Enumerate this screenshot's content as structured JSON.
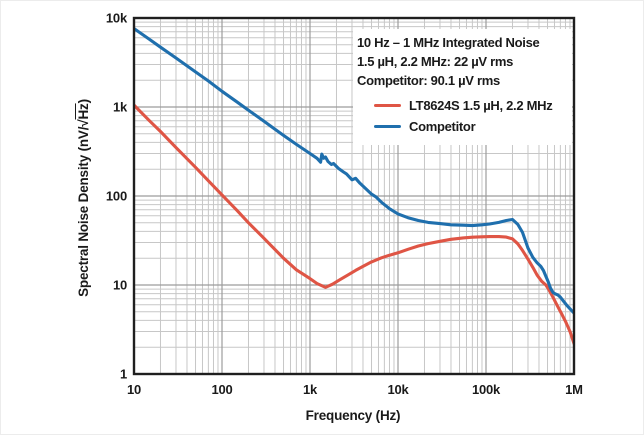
{
  "annotation": {
    "lines": [
      "10 Hz – 1 MHz Integrated Noise",
      "1.5 µH, 2.2 MHz: 22 µV rms",
      "Competitor: 90.1 µV rms"
    ]
  },
  "axes": {
    "x_title": "Frequency (Hz)",
    "y_title_prefix": "Spectral Noise Density (nV/√",
    "y_title_overline": "Hz",
    "y_title_suffix": ")"
  },
  "colors": {
    "red": "#df5545",
    "blue": "#1f6fad",
    "grid_minor": "#c7c7c7",
    "grid_major": "#9c9c9c",
    "frame": "#1f1f1f",
    "text": "#1a1a1a",
    "background": "#ffffff"
  },
  "chart_data": {
    "type": "line",
    "title": "10 Hz – 1 MHz Integrated Noise",
    "xlabel": "Frequency (Hz)",
    "ylabel": "Spectral Noise Density (nV/√Hz)",
    "x_scale": "log",
    "y_scale": "log",
    "xlim": [
      10,
      1000000
    ],
    "ylim": [
      1,
      10000
    ],
    "grid": true,
    "legend_position": "upper right inside",
    "annotations": [
      "10 Hz – 1 MHz Integrated Noise",
      "1.5 µH, 2.2 MHz: 22 µV rms",
      "Competitor: 90.1 µV rms"
    ],
    "x_ticks": [
      {
        "value": 10,
        "label": "10"
      },
      {
        "value": 100,
        "label": "100"
      },
      {
        "value": 1000,
        "label": "1k"
      },
      {
        "value": 10000,
        "label": "10k"
      },
      {
        "value": 100000,
        "label": "100k"
      },
      {
        "value": 1000000,
        "label": "1M"
      }
    ],
    "y_ticks": [
      {
        "value": 10000,
        "label": "10k"
      },
      {
        "value": 1000,
        "label": "1k"
      },
      {
        "value": 100,
        "label": "100"
      },
      {
        "value": 10,
        "label": "10"
      },
      {
        "value": 1,
        "label": "1"
      }
    ],
    "series": [
      {
        "name": "LT8624S 1.5 µH, 2.2 MHz",
        "color": "#df5545",
        "points": [
          [
            10,
            1050
          ],
          [
            15,
            700
          ],
          [
            20,
            530
          ],
          [
            30,
            350
          ],
          [
            50,
            210
          ],
          [
            70,
            148
          ],
          [
            100,
            103
          ],
          [
            150,
            68
          ],
          [
            200,
            50
          ],
          [
            300,
            33.5
          ],
          [
            500,
            20
          ],
          [
            700,
            14.8
          ],
          [
            1000,
            11.8
          ],
          [
            1200,
            10.4
          ],
          [
            1500,
            9.4
          ],
          [
            1800,
            10.2
          ],
          [
            2200,
            11.5
          ],
          [
            2700,
            13
          ],
          [
            3300,
            14.6
          ],
          [
            4000,
            16.2
          ],
          [
            5000,
            18.2
          ],
          [
            6500,
            20.2
          ],
          [
            8000,
            21.6
          ],
          [
            10000,
            23
          ],
          [
            13000,
            25.2
          ],
          [
            17000,
            27.4
          ],
          [
            22000,
            29.2
          ],
          [
            30000,
            31
          ],
          [
            40000,
            32.6
          ],
          [
            55000,
            33.8
          ],
          [
            70000,
            34.4
          ],
          [
            90000,
            34.8
          ],
          [
            110000,
            35
          ],
          [
            140000,
            35
          ],
          [
            170000,
            34.5
          ],
          [
            200000,
            33
          ],
          [
            230000,
            29
          ],
          [
            260000,
            24.5
          ],
          [
            300000,
            19.5
          ],
          [
            340000,
            15.8
          ],
          [
            380000,
            13
          ],
          [
            430000,
            11
          ],
          [
            480000,
            10
          ],
          [
            520000,
            8.8
          ],
          [
            580000,
            7.2
          ],
          [
            650000,
            5.8
          ],
          [
            720000,
            4.8
          ],
          [
            800000,
            3.9
          ],
          [
            900000,
            3.0
          ],
          [
            1000000,
            2.2
          ]
        ]
      },
      {
        "name": "Competitor",
        "color": "#1f6fad",
        "points": [
          [
            10,
            7600
          ],
          [
            15,
            5750
          ],
          [
            20,
            4700
          ],
          [
            30,
            3550
          ],
          [
            50,
            2480
          ],
          [
            70,
            1960
          ],
          [
            100,
            1500
          ],
          [
            150,
            1130
          ],
          [
            200,
            920
          ],
          [
            300,
            690
          ],
          [
            500,
            480
          ],
          [
            700,
            380
          ],
          [
            1000,
            300
          ],
          [
            1200,
            265
          ],
          [
            1320,
            240
          ],
          [
            1360,
            296
          ],
          [
            1430,
            266
          ],
          [
            1500,
            274
          ],
          [
            1600,
            244
          ],
          [
            1750,
            226
          ],
          [
            1850,
            232
          ],
          [
            2100,
            204
          ],
          [
            2400,
            186
          ],
          [
            2600,
            177
          ],
          [
            3000,
            152
          ],
          [
            3300,
            158
          ],
          [
            3700,
            139
          ],
          [
            4300,
            121
          ],
          [
            5000,
            105
          ],
          [
            5600,
            98
          ],
          [
            6500,
            85
          ],
          [
            8000,
            72
          ],
          [
            10000,
            63
          ],
          [
            13000,
            57
          ],
          [
            17000,
            53
          ],
          [
            22000,
            50.5
          ],
          [
            30000,
            49
          ],
          [
            40000,
            47.5
          ],
          [
            55000,
            47
          ],
          [
            70000,
            46.5
          ],
          [
            90000,
            47.5
          ],
          [
            110000,
            48.5
          ],
          [
            140000,
            50.5
          ],
          [
            170000,
            53
          ],
          [
            200000,
            54.5
          ],
          [
            230000,
            48
          ],
          [
            260000,
            39
          ],
          [
            300000,
            26
          ],
          [
            340000,
            20.5
          ],
          [
            380000,
            17.8
          ],
          [
            420000,
            16.2
          ],
          [
            450000,
            14.5
          ],
          [
            480000,
            12.5
          ],
          [
            510000,
            10.8
          ],
          [
            540000,
            9.2
          ],
          [
            580000,
            8.2
          ],
          [
            620000,
            7.9
          ],
          [
            660000,
            7.7
          ],
          [
            700000,
            7.3
          ],
          [
            760000,
            6.6
          ],
          [
            830000,
            5.9
          ],
          [
            900000,
            5.4
          ],
          [
            1000000,
            4.85
          ]
        ]
      }
    ]
  }
}
